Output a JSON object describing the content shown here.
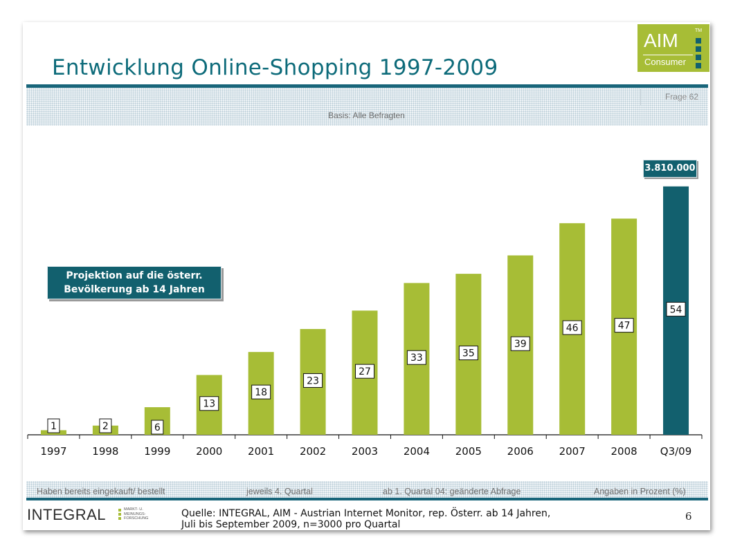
{
  "title": "Entwicklung Online-Shopping 1997-2009",
  "logo": {
    "main": "AIM",
    "tm": "TM",
    "sub": "Consumer"
  },
  "frage": "Frage 62",
  "basis": "Basis: Alle Befragten",
  "projection_box": {
    "line1": "Projektion auf die österr.",
    "line2": "Bevölkerung ab 14 Jahren"
  },
  "callout": "3.810.000",
  "footer": {
    "label1": "Haben bereits eingekauft/ bestellt",
    "label2": "jeweils 4. Quartal",
    "label3": "ab 1. Quartal 04: geänderte Abfrage",
    "label4": "Angaben in Prozent (%)"
  },
  "integral": {
    "name": "INTEGRAL",
    "sub1": "MARKT- U.",
    "sub2": "MEINUNGS-",
    "sub3": "FORSCHUNG"
  },
  "source": {
    "line1": "Quelle: INTEGRAL, AIM - Austrian Internet Monitor, rep. Österr. ab 14 Jahren,",
    "line2": "Juli bis September 2009, n=3000 pro Quartal"
  },
  "page_number": "6",
  "colors": {
    "teal": "#12606e",
    "green": "#a7bd36",
    "title": "#0d6b7a"
  },
  "chart_data": {
    "type": "bar",
    "categories": [
      "1997",
      "1998",
      "1999",
      "2000",
      "2001",
      "2002",
      "2003",
      "2004",
      "2005",
      "2006",
      "2007",
      "2008",
      "Q3/09"
    ],
    "values": [
      1,
      2,
      6,
      13,
      18,
      23,
      27,
      33,
      35,
      39,
      46,
      47,
      54
    ],
    "highlight_index": 12,
    "ylim": [
      0,
      60
    ],
    "unit": "Prozent (%)",
    "grid": false,
    "legend": "none"
  }
}
